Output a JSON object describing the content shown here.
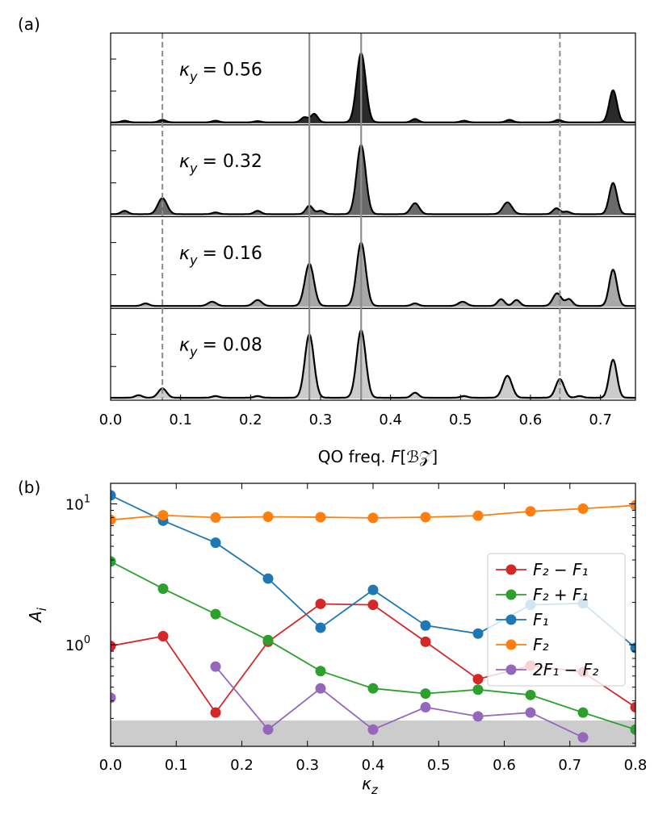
{
  "chart_data": [
    {
      "panel_label": "(a)",
      "type": "area",
      "xlabel_prefix": "QO freq. ",
      "xlabel_var": "F",
      "xlabel_unit": "[ℬ𝒵]",
      "xlim": [
        0.0,
        0.75
      ],
      "x_ticks": [
        "0.0",
        "0.1",
        "0.2",
        "0.3",
        "0.4",
        "0.5",
        "0.6",
        "0.7"
      ],
      "solid_lines_x": [
        0.284,
        0.358
      ],
      "dashed_lines_x": [
        0.074,
        0.642
      ],
      "rows": [
        {
          "kappa_label": "κ",
          "kappa_sub": "y",
          "kappa_value": "= 0.56",
          "fill": "#2a2a2a",
          "peaks": [
            [
              0.358,
              0.82,
              0.0065
            ],
            [
              0.718,
              0.38,
              0.0055
            ],
            [
              0.291,
              0.1,
              0.005
            ],
            [
              0.277,
              0.06,
              0.005
            ],
            [
              0.074,
              0.03,
              0.005
            ],
            [
              0.435,
              0.04,
              0.005
            ],
            [
              0.505,
              0.02,
              0.005
            ],
            [
              0.57,
              0.03,
              0.005
            ],
            [
              0.64,
              0.03,
              0.005
            ],
            [
              0.02,
              0.02,
              0.005
            ],
            [
              0.15,
              0.02,
              0.005
            ],
            [
              0.21,
              0.015,
              0.005
            ]
          ]
        },
        {
          "kappa_label": "κ",
          "kappa_sub": "y",
          "kappa_value": "= 0.32",
          "fill": "#6a6a6a",
          "peaks": [
            [
              0.358,
              0.82,
              0.0065
            ],
            [
              0.718,
              0.37,
              0.0055
            ],
            [
              0.074,
              0.19,
              0.0065
            ],
            [
              0.284,
              0.1,
              0.005
            ],
            [
              0.435,
              0.13,
              0.006
            ],
            [
              0.567,
              0.14,
              0.0065
            ],
            [
              0.637,
              0.07,
              0.005
            ],
            [
              0.21,
              0.04,
              0.005
            ],
            [
              0.02,
              0.04,
              0.005
            ],
            [
              0.15,
              0.02,
              0.005
            ],
            [
              0.3,
              0.04,
              0.005
            ],
            [
              0.652,
              0.03,
              0.005
            ]
          ]
        },
        {
          "kappa_label": "κ",
          "kappa_sub": "y",
          "kappa_value": "= 0.16",
          "fill": "#a8a8a8",
          "peaks": [
            [
              0.358,
              0.75,
              0.0065
            ],
            [
              0.284,
              0.5,
              0.0065
            ],
            [
              0.718,
              0.43,
              0.0055
            ],
            [
              0.638,
              0.15,
              0.006
            ],
            [
              0.21,
              0.07,
              0.006
            ],
            [
              0.145,
              0.05,
              0.006
            ],
            [
              0.558,
              0.08,
              0.005
            ],
            [
              0.58,
              0.07,
              0.005
            ],
            [
              0.503,
              0.05,
              0.006
            ],
            [
              0.435,
              0.03,
              0.005
            ],
            [
              0.05,
              0.03,
              0.005
            ],
            [
              0.655,
              0.08,
              0.005
            ]
          ]
        },
        {
          "kappa_label": "κ",
          "kappa_sub": "y",
          "kappa_value": "= 0.08",
          "fill": "#cccccc",
          "peaks": [
            [
              0.358,
              0.8,
              0.0065
            ],
            [
              0.284,
              0.75,
              0.0065
            ],
            [
              0.718,
              0.45,
              0.0055
            ],
            [
              0.567,
              0.26,
              0.0065
            ],
            [
              0.642,
              0.22,
              0.006
            ],
            [
              0.074,
              0.11,
              0.006
            ],
            [
              0.435,
              0.06,
              0.005
            ],
            [
              0.04,
              0.03,
              0.005
            ],
            [
              0.15,
              0.02,
              0.005
            ],
            [
              0.21,
              0.02,
              0.005
            ],
            [
              0.505,
              0.02,
              0.005
            ],
            [
              0.67,
              0.02,
              0.005
            ]
          ]
        }
      ]
    },
    {
      "panel_label": "(b)",
      "type": "line",
      "ylabel_var": "A",
      "ylabel_sub": "i",
      "xlabel_var": "κ",
      "xlabel_sub": "z",
      "xlim": [
        0.0,
        0.8
      ],
      "ylim": [
        0.19,
        14
      ],
      "y_scale": "log",
      "x": [
        0.0,
        0.08,
        0.16,
        0.24,
        0.32,
        0.4,
        0.48,
        0.56,
        0.64,
        0.72,
        0.8
      ],
      "x_ticks": [
        "0.0",
        "0.1",
        "0.2",
        "0.3",
        "0.4",
        "0.5",
        "0.6",
        "0.7",
        "0.8"
      ],
      "y_ticks": [
        {
          "base": "10",
          "exp": "1",
          "value": 10
        },
        {
          "base": "10",
          "exp": "0",
          "value": 1
        }
      ],
      "noise_floor": 0.29,
      "noise_color": "#cccccc",
      "legend_position": "center-right",
      "series": [
        {
          "name": "F₂ − F₁",
          "color": "#d62728",
          "values": [
            0.98,
            1.15,
            0.33,
            1.05,
            1.95,
            1.92,
            1.05,
            0.57,
            0.71,
            0.64,
            0.36
          ]
        },
        {
          "name": "F₂ + F₁",
          "color": "#2ca02c",
          "values": [
            3.9,
            2.5,
            1.65,
            1.08,
            0.65,
            0.49,
            0.45,
            0.48,
            0.44,
            0.33,
            0.25
          ]
        },
        {
          "name": "F₁",
          "color": "#1f77b4",
          "values": [
            11.5,
            7.6,
            5.3,
            2.95,
            1.32,
            2.45,
            1.37,
            1.2,
            1.92,
            1.97,
            0.95
          ]
        },
        {
          "name": "F₂",
          "color": "#ff7f0e",
          "values": [
            7.7,
            8.3,
            8.0,
            8.1,
            8.05,
            7.95,
            8.05,
            8.25,
            8.85,
            9.25,
            9.75
          ]
        },
        {
          "name": "2F₁ − F₂",
          "color": "#9467bd",
          "values": [
            0.42,
            null,
            0.7,
            0.25,
            0.49,
            0.25,
            0.36,
            0.31,
            0.33,
            0.22,
            null
          ]
        }
      ]
    }
  ]
}
